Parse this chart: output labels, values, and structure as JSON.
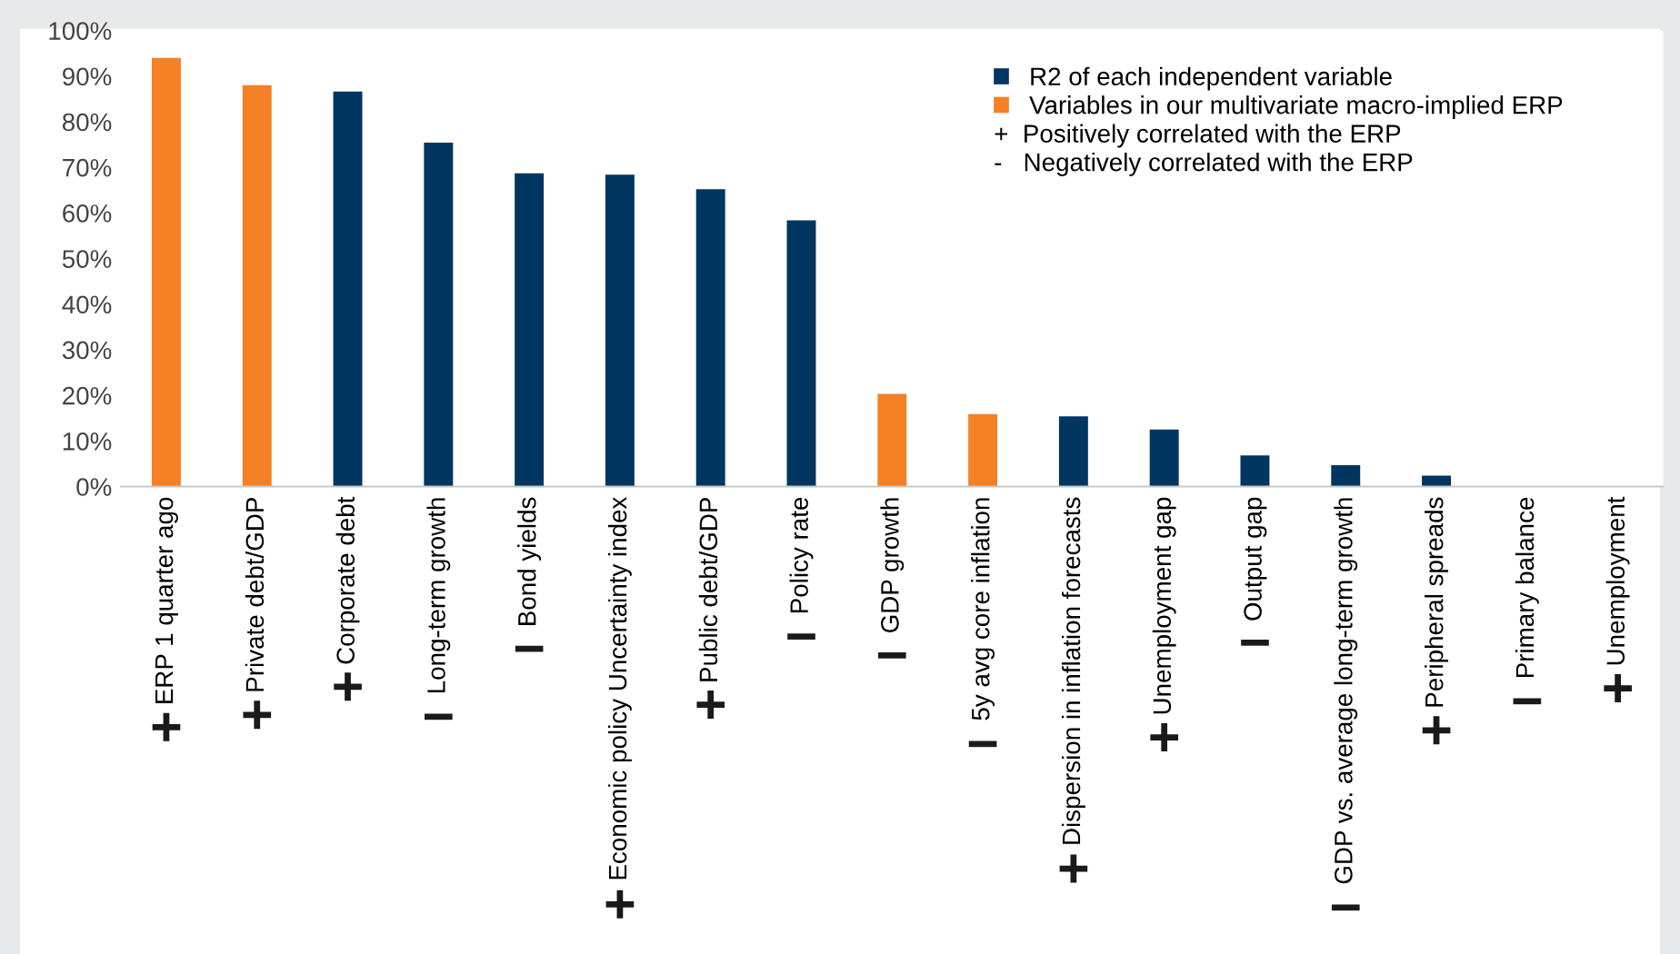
{
  "chart_data": {
    "type": "bar",
    "stacked": true,
    "categories": [
      "ERP 1 quarter ago",
      "Private debt/GDP",
      "Corporate debt",
      "Long-term growth",
      "Bond yields",
      "Economic policy Uncertainty index",
      "Public debt/GDP",
      "Policy rate",
      "GDP growth",
      "5y avg core inflation",
      "Dispersion in inflation forecasts",
      "Unemployment gap",
      "Output gap",
      "GDP vs. average long-term growth",
      "Peripheral spreads",
      "Primary balance",
      "Unemployment"
    ],
    "series": [
      {
        "name": "R2 of each independent variable",
        "color": "#003660",
        "values": [
          null,
          null,
          86.6,
          75.4,
          68.7,
          68.4,
          65.2,
          58.4,
          null,
          null,
          15.4,
          12.5,
          6.8,
          4.7,
          2.4,
          0,
          0
        ]
      },
      {
        "name": "Variables in our multivariate macro-implied ERP",
        "color": "#f58025",
        "values": [
          94,
          88,
          null,
          null,
          null,
          null,
          null,
          null,
          20.3,
          15.9,
          null,
          null,
          null,
          null,
          null,
          null,
          null
        ]
      }
    ],
    "ylim": [
      0,
      100
    ],
    "yticks": [
      {
        "value": 0,
        "label": "0%"
      },
      {
        "value": 10,
        "label": "10%"
      },
      {
        "value": 20,
        "label": "20%"
      },
      {
        "value": 30,
        "label": "30%"
      },
      {
        "value": 40,
        "label": "40%"
      },
      {
        "value": 50,
        "label": "50%"
      },
      {
        "value": 60,
        "label": "60%"
      },
      {
        "value": 70,
        "label": "70%"
      },
      {
        "value": 80,
        "label": "80%"
      },
      {
        "value": 90,
        "label": "90%"
      },
      {
        "value": 100,
        "label": "100%"
      }
    ],
    "legend": "top right",
    "annotations": [
      "+  Positively correlated with the ERP",
      "-   Negatively correlated with the ERP",
      "+",
      "+",
      "+",
      "−",
      "−",
      "+",
      "+",
      "−",
      "−",
      "−",
      "+",
      "+",
      "−",
      "−",
      "+",
      "−",
      "+"
    ]
  }
}
